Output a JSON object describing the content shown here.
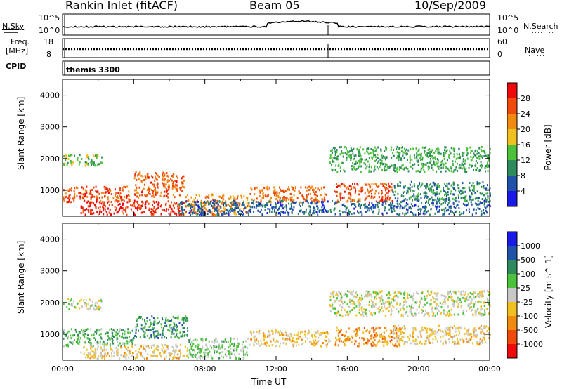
{
  "header": {
    "station": "Rankin Inlet (fitACF)",
    "beam": "Beam 05",
    "date": "10/Sep/2009"
  },
  "panels": {
    "nsky_label": "N.Sky",
    "nsky_ticks": [
      "10^5",
      "10^0"
    ],
    "nsearch_label": "N.Search",
    "freq_label": "Freq.",
    "freq_unit": "[MHz]",
    "freq_ticks": [
      "18",
      "8"
    ],
    "nave_label": "Nave",
    "nave_ticks": [
      "60",
      "0"
    ],
    "cpid_label": "CPID",
    "cpid_value": "themis 3300"
  },
  "colors": {
    "power_scale": [
      "#1a1ae6",
      "#1f52a8",
      "#2e8a5c",
      "#4cc23c",
      "#f0c020",
      "#f08a10",
      "#f04a0a",
      "#ee0a0a"
    ],
    "velocity_scale": [
      "#ee0a0a",
      "#f04a0a",
      "#f08a10",
      "#f0c020",
      "#c8c8c8",
      "#4cc23c",
      "#2e8a5c",
      "#1f52a8",
      "#1a1ae6"
    ]
  },
  "chart_data": [
    {
      "type": "heatmap",
      "title": "",
      "xlabel": "",
      "ylabel": "Slant Range [km]",
      "xlim": [
        "00:00",
        "24:00"
      ],
      "ylim": [
        180,
        4500
      ],
      "y_ticks": [
        1000,
        2000,
        3000,
        4000
      ],
      "colorbar_label": "Power [dB]",
      "colorbar_ticks": [
        "28",
        "24",
        "20",
        "16",
        "12",
        "8",
        "4"
      ],
      "colorbar_range": [
        0,
        32
      ],
      "regions": [
        {
          "time": [
            0,
            2.2
          ],
          "range": [
            1800,
            2150
          ],
          "value": 14
        },
        {
          "time": [
            0,
            3.8
          ],
          "range": [
            650,
            1150
          ],
          "value": 26
        },
        {
          "time": [
            1.0,
            7.0
          ],
          "range": [
            250,
            700
          ],
          "value": 29
        },
        {
          "time": [
            4.0,
            6.8
          ],
          "range": [
            800,
            1600
          ],
          "value": 25
        },
        {
          "time": [
            6.8,
            10.5
          ],
          "range": [
            250,
            900
          ],
          "value": 22
        },
        {
          "time": [
            10.5,
            14.8
          ],
          "range": [
            650,
            1150
          ],
          "value": 24
        },
        {
          "time": [
            15.2,
            18.5
          ],
          "range": [
            650,
            1250
          ],
          "value": 26
        },
        {
          "time": [
            15.0,
            24.0
          ],
          "range": [
            1600,
            2400
          ],
          "value": 12
        },
        {
          "time": [
            18.5,
            24.0
          ],
          "range": [
            700,
            1300
          ],
          "value": 10
        },
        {
          "time": [
            6.5,
            24.0
          ],
          "range": [
            250,
            700
          ],
          "value": 7
        }
      ]
    },
    {
      "type": "heatmap",
      "title": "",
      "xlabel": "Time UT",
      "ylabel": "Slant Range [km]",
      "xlim": [
        "00:00",
        "24:00"
      ],
      "x_ticks": [
        "00:00",
        "04:00",
        "08:00",
        "12:00",
        "16:00",
        "20:00",
        "00:00"
      ],
      "ylim": [
        180,
        4500
      ],
      "y_ticks": [
        1000,
        2000,
        3000,
        4000
      ],
      "colorbar_label": "Velocity [m s^-1]",
      "colorbar_ticks": [
        "1000",
        "500",
        "100",
        "25",
        "-25",
        "-100",
        "-500",
        "-1000"
      ],
      "colorbar_range": [
        -1000,
        1000
      ],
      "regions": [
        {
          "time": [
            0,
            2.2
          ],
          "range": [
            1800,
            2150
          ],
          "value": 0
        },
        {
          "time": [
            0,
            4.0
          ],
          "range": [
            650,
            1200
          ],
          "value": 300
        },
        {
          "time": [
            1.0,
            7.0
          ],
          "range": [
            250,
            700
          ],
          "value": -150
        },
        {
          "time": [
            4.0,
            7.0
          ],
          "range": [
            900,
            1600
          ],
          "value": 400
        },
        {
          "time": [
            7.0,
            10.5
          ],
          "range": [
            250,
            900
          ],
          "value": 150
        },
        {
          "time": [
            10.5,
            15.0
          ],
          "range": [
            650,
            1150
          ],
          "value": -200
        },
        {
          "time": [
            15.2,
            19.0
          ],
          "range": [
            650,
            1250
          ],
          "value": -400
        },
        {
          "time": [
            15.0,
            24.0
          ],
          "range": [
            1600,
            2400
          ],
          "value": 0
        },
        {
          "time": [
            18.5,
            24.0
          ],
          "range": [
            700,
            1300
          ],
          "value": -200
        }
      ]
    }
  ]
}
